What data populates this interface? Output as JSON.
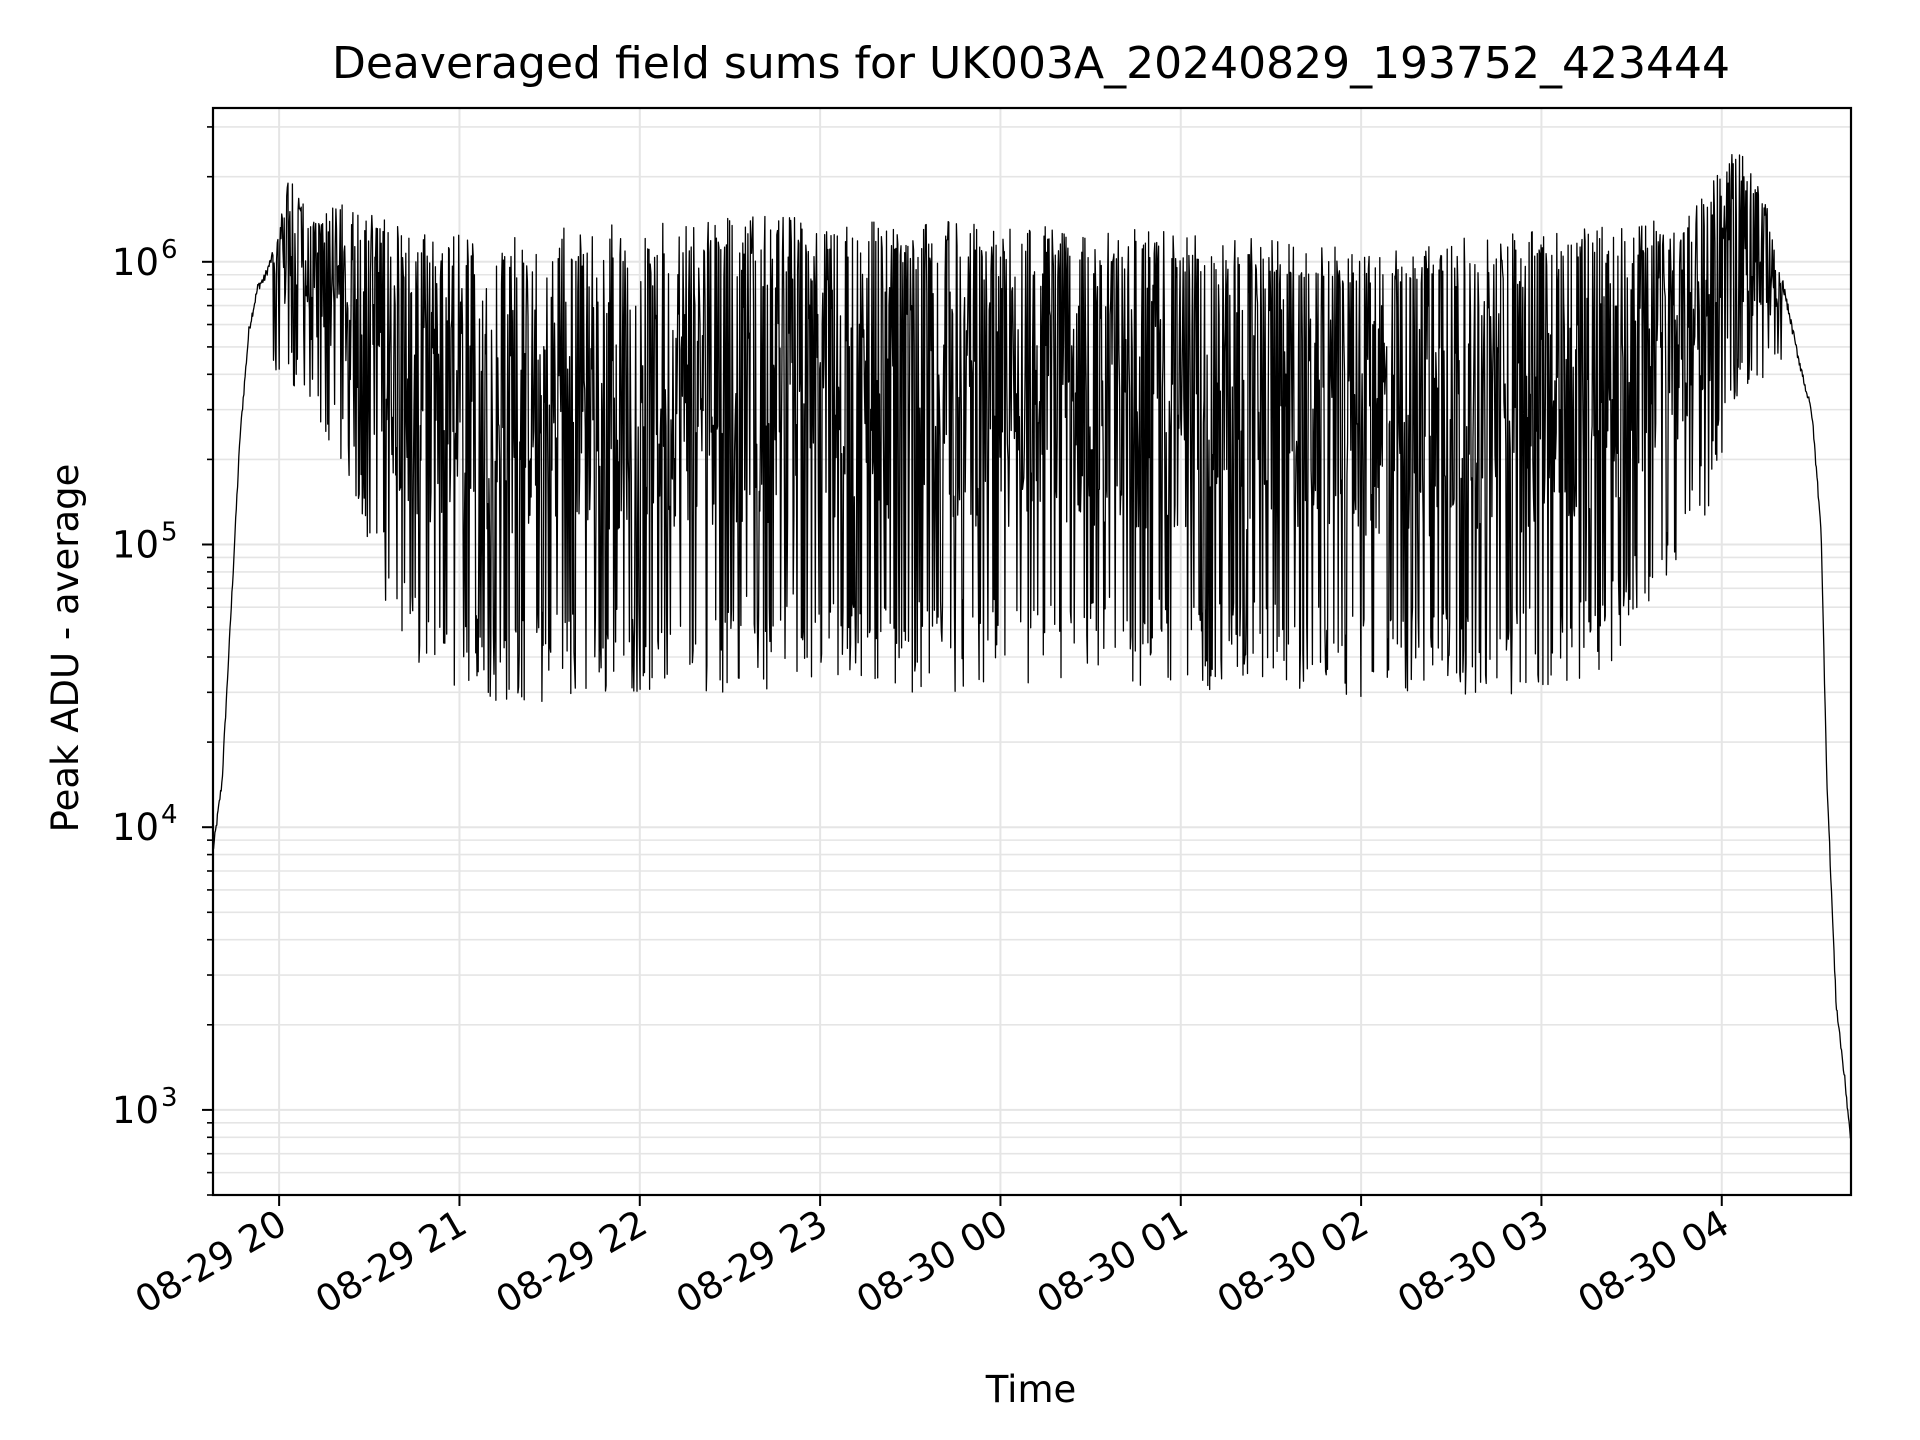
{
  "chart_data": {
    "type": "line",
    "title": "Deaveraged field sums for UK003A_20240829_193752_423444",
    "xlabel": "Time",
    "ylabel": "Peak ADU - average",
    "yscale": "log",
    "grid": true,
    "line_color": "#000000",
    "grid_color": "#e5e5e5",
    "xlim": [
      "2024-08-29 19:38",
      "2024-08-30 04:43"
    ],
    "ylim": [
      500,
      3500000
    ],
    "x_ticks": [
      {
        "value": "2024-08-29 20:00",
        "label": "08-29 20"
      },
      {
        "value": "2024-08-29 21:00",
        "label": "08-29 21"
      },
      {
        "value": "2024-08-29 22:00",
        "label": "08-29 22"
      },
      {
        "value": "2024-08-29 23:00",
        "label": "08-29 23"
      },
      {
        "value": "2024-08-30 00:00",
        "label": "08-30 00"
      },
      {
        "value": "2024-08-30 01:00",
        "label": "08-30 01"
      },
      {
        "value": "2024-08-30 02:00",
        "label": "08-30 02"
      },
      {
        "value": "2024-08-30 03:00",
        "label": "08-30 03"
      },
      {
        "value": "2024-08-30 04:00",
        "label": "08-30 04"
      }
    ],
    "y_ticks": [
      {
        "value": 1000,
        "base": "10",
        "exp": "3"
      },
      {
        "value": 10000,
        "base": "10",
        "exp": "4"
      },
      {
        "value": 100000,
        "base": "10",
        "exp": "5"
      },
      {
        "value": 1000000,
        "base": "10",
        "exp": "6"
      }
    ],
    "series": [
      {
        "upper_envelope": {
          "x": [
            "2024-08-29 19:38",
            "2024-08-29 19:41",
            "2024-08-29 19:44",
            "2024-08-29 19:47",
            "2024-08-29 19:50",
            "2024-08-29 19:53",
            "2024-08-29 19:55",
            "2024-08-29 19:58",
            "2024-08-29 20:01",
            "2024-08-29 20:03",
            "2024-08-29 20:10",
            "2024-08-29 20:20",
            "2024-08-29 20:30",
            "2024-08-29 20:45",
            "2024-08-29 21:00",
            "2024-08-29 21:30",
            "2024-08-29 22:00",
            "2024-08-29 22:30",
            "2024-08-29 23:00",
            "2024-08-29 23:30",
            "2024-08-30 00:00",
            "2024-08-30 00:30",
            "2024-08-30 01:00",
            "2024-08-30 01:30",
            "2024-08-30 02:00",
            "2024-08-30 02:30",
            "2024-08-30 03:00",
            "2024-08-30 03:30",
            "2024-08-30 03:50",
            "2024-08-30 04:05",
            "2024-08-30 04:15",
            "2024-08-30 04:20",
            "2024-08-30 04:25",
            "2024-08-30 04:30",
            "2024-08-30 04:33",
            "2024-08-30 04:35",
            "2024-08-30 04:38",
            "2024-08-30 04:41",
            "2024-08-30 04:43"
          ],
          "y": [
            8500,
            15000,
            60000,
            250000,
            600000,
            850000,
            900000,
            1100000,
            1500000,
            2000000,
            1500000,
            1600000,
            1500000,
            1300000,
            1250000,
            1300000,
            1400000,
            1450000,
            1450000,
            1400000,
            1400000,
            1350000,
            1300000,
            1200000,
            1100000,
            1200000,
            1300000,
            1350000,
            1500000,
            2600000,
            1600000,
            900000,
            500000,
            300000,
            120000,
            15000,
            2500,
            1300,
            800
          ]
        },
        "lower_envelope": {
          "x": [
            "2024-08-29 19:58",
            "2024-08-29 20:05",
            "2024-08-29 20:15",
            "2024-08-29 20:25",
            "2024-08-29 20:35",
            "2024-08-29 20:45",
            "2024-08-29 21:00",
            "2024-08-29 21:30",
            "2024-08-29 22:00",
            "2024-08-29 22:30",
            "2024-08-29 23:00",
            "2024-08-29 23:30",
            "2024-08-30 00:00",
            "2024-08-30 00:30",
            "2024-08-30 01:00",
            "2024-08-30 01:30",
            "2024-08-30 02:00",
            "2024-08-30 02:30",
            "2024-08-30 02:50",
            "2024-08-30 03:10",
            "2024-08-30 03:25",
            "2024-08-30 03:40",
            "2024-08-30 03:55",
            "2024-08-30 04:05",
            "2024-08-30 04:15",
            "2024-08-30 04:20"
          ],
          "y": [
            400000,
            350000,
            250000,
            150000,
            65000,
            35000,
            28000,
            27000,
            30000,
            30000,
            32000,
            30000,
            30000,
            31000,
            30000,
            31000,
            28000,
            30000,
            28000,
            30000,
            40000,
            70000,
            130000,
            300000,
            400000,
            400000
          ]
        }
      }
    ]
  }
}
